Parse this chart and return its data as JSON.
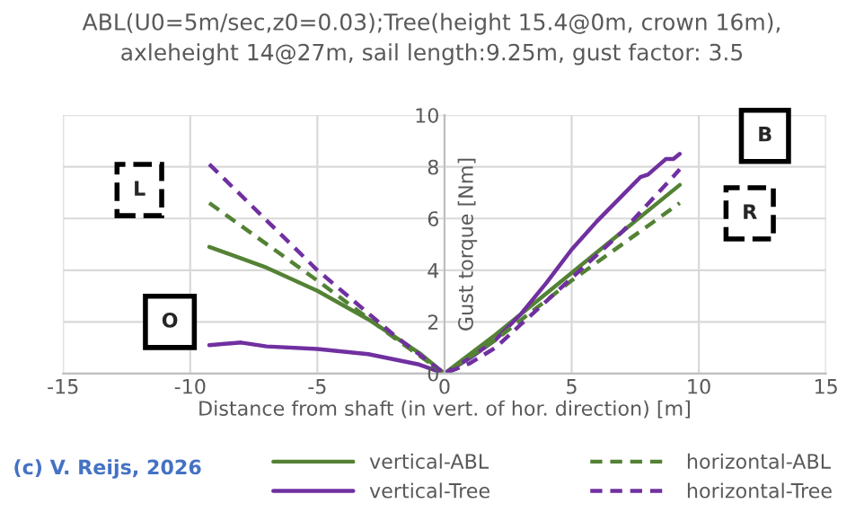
{
  "chart_data": {
    "type": "line",
    "title": "ABL(U0=5m/sec,z0=0.03);Tree(height 15.4@0m, crown 16m),\naxleheight 14@27m, sail length:9.25m, gust factor: 3.5",
    "xlabel": "Distance from shaft (in vert. of hor. direction) [m]",
    "ylabel": "Gust torque [Nm]",
    "xlim": [
      -15,
      15
    ],
    "xticks": [
      -15,
      -10,
      -5,
      0,
      5,
      10,
      15
    ],
    "ylim": [
      0,
      10
    ],
    "yticks": [
      0,
      2,
      4,
      6,
      8,
      10
    ],
    "grid": true,
    "legend": "bottom",
    "marker": "none",
    "annotations": [
      "L",
      "O",
      "B",
      "R",
      "(c) V. Reijs, 2026"
    ],
    "series": [
      {
        "name": "vertical-ABL",
        "color": "#548235",
        "line_style": "solid",
        "x": [
          -9.25,
          -7,
          -5,
          -3,
          -1,
          0,
          2,
          5,
          9.25
        ],
        "values": [
          4.9,
          4.1,
          3.2,
          2.1,
          0.8,
          0,
          1.5,
          3.9,
          7.3
        ]
      },
      {
        "name": "vertical-Tree",
        "color": "#7030a0",
        "line_style": "solid",
        "x": [
          -9.25,
          -8,
          -7,
          -5,
          -3,
          -1,
          0,
          1,
          2,
          3,
          4,
          5,
          6,
          7,
          7.7,
          8,
          8.7,
          9,
          9.25
        ],
        "values": [
          1.1,
          1.2,
          1.05,
          0.95,
          0.75,
          0.35,
          0,
          0.6,
          1.3,
          2.3,
          3.5,
          4.8,
          5.9,
          6.9,
          7.6,
          7.7,
          8.3,
          8.3,
          8.5
        ]
      },
      {
        "name": "horizontal-ABL",
        "color": "#548235",
        "line_style": "dashed",
        "x": [
          -9.25,
          -5,
          -2,
          0,
          2,
          5,
          9.25
        ],
        "values": [
          6.6,
          3.6,
          1.4,
          0,
          1.3,
          3.6,
          6.6
        ]
      },
      {
        "name": "horizontal-Tree",
        "color": "#7030a0",
        "line_style": "dashed",
        "x": [
          -9.25,
          -5,
          -2,
          0,
          1,
          2,
          3,
          5,
          7,
          9.25
        ],
        "values": [
          8.1,
          4.0,
          1.5,
          0,
          0.4,
          1.0,
          1.9,
          3.7,
          5.5,
          7.9
        ]
      }
    ]
  }
}
